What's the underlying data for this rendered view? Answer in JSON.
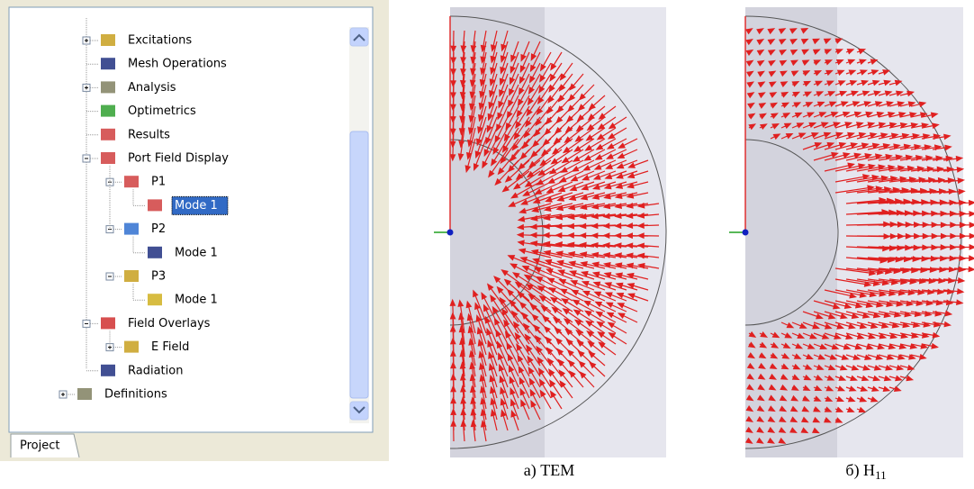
{
  "tree": {
    "items": [
      {
        "label": "Excitations",
        "expanded": false
      },
      {
        "label": "Mesh Operations"
      },
      {
        "label": "Analysis",
        "expanded": false
      },
      {
        "label": "Optimetrics"
      },
      {
        "label": "Results"
      },
      {
        "label": "Port Field Display",
        "expanded": true,
        "children": [
          {
            "label": "P1",
            "expanded": true,
            "children": [
              {
                "label": "Mode 1",
                "selected": true
              }
            ]
          },
          {
            "label": "P2",
            "expanded": true,
            "children": [
              {
                "label": "Mode 1"
              }
            ]
          },
          {
            "label": "P3",
            "expanded": true,
            "children": [
              {
                "label": "Mode 1"
              }
            ]
          }
        ]
      },
      {
        "label": "Field Overlays",
        "expanded": true,
        "children": [
          {
            "label": "E Field",
            "expanded": false
          }
        ]
      },
      {
        "label": "Radiation"
      }
    ],
    "root_items": [
      {
        "label": "Definitions",
        "expanded": false
      }
    ]
  },
  "tab": {
    "label": "Project"
  },
  "figures": [
    {
      "caption": {
        "text": "а) TEM"
      }
    },
    {
      "caption": {
        "text": "б) H",
        "subscript": "11"
      }
    }
  ]
}
